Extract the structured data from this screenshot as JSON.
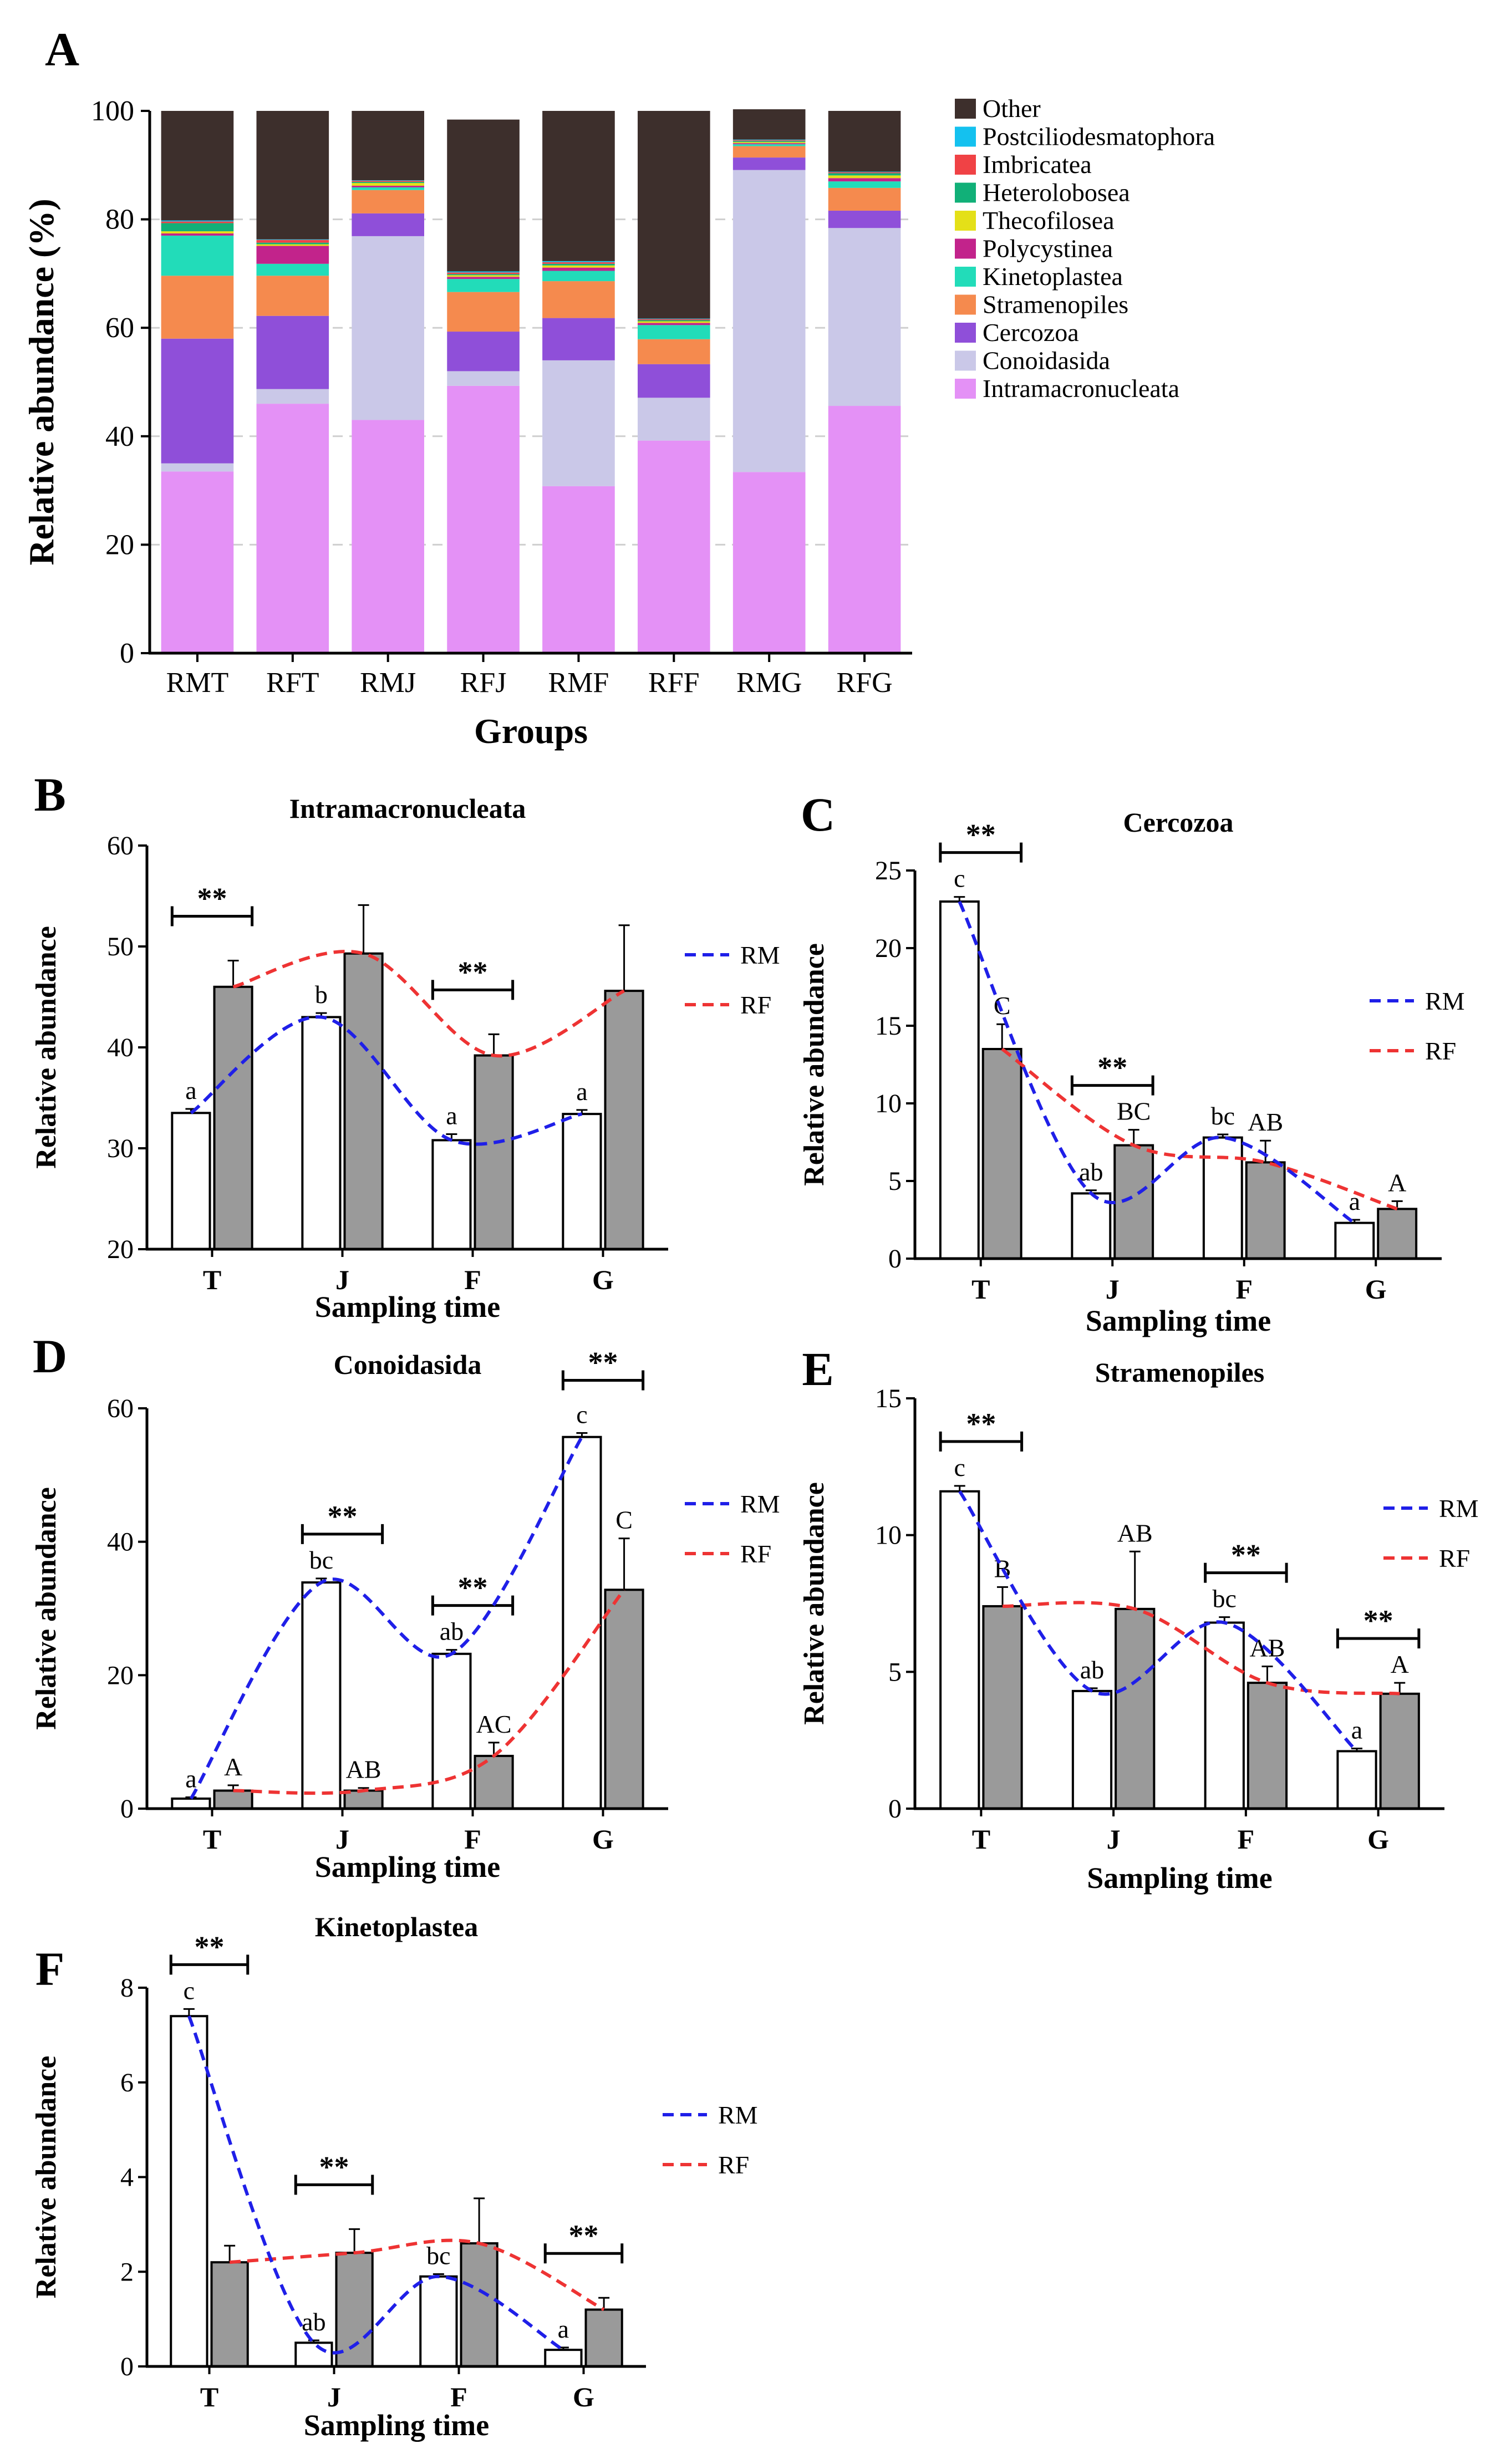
{
  "figure": {
    "panels": [
      "A",
      "B",
      "C",
      "D",
      "E",
      "F"
    ],
    "colors": {
      "Intramacronucleata": "#e491f6",
      "Conoidasida": "#cac8e8",
      "Cercozoa": "#8f4fd9",
      "Stramenopiles": "#f58a4e",
      "Kinetoplastea": "#22dcb9",
      "Polycystinea": "#c2238b",
      "Thecofilosea": "#e4e018",
      "Heterolobosea": "#11b078",
      "Imbricatea": "#f04245",
      "Postciliodesmatophora": "#14c1ef",
      "Other": "#3d2f2c",
      "rm_line": "#1f1fe8",
      "rf_line": "#ee3333",
      "rm_bar": "#ffffff",
      "rf_bar": "#9a9a9a"
    }
  },
  "chart_data": [
    {
      "panel": "A",
      "type": "bar",
      "stacked": true,
      "title": "",
      "xlabel": "Groups",
      "ylabel": "Relative abundance (%)",
      "ylim": [
        0,
        100
      ],
      "yticks": [
        "0",
        "20",
        "40",
        "60",
        "80",
        "100"
      ],
      "categories": [
        "RMT",
        "RFT",
        "RMJ",
        "RFJ",
        "RMF",
        "RFF",
        "RMG",
        "RFG"
      ],
      "legend_order": [
        "Other",
        "Postciliodesmatophora",
        "Imbricatea",
        "Heterolobosea",
        "Thecofilosea",
        "Polycystinea",
        "Kinetoplastea",
        "Stramenopiles",
        "Cercozoa",
        "Conoidasida",
        "Intramacronucleata"
      ],
      "series": [
        {
          "name": "Intramacronucleata",
          "values": [
            33.5,
            46.0,
            43.0,
            49.3,
            30.8,
            39.2,
            33.4,
            45.6
          ]
        },
        {
          "name": "Conoidasida",
          "values": [
            1.5,
            2.7,
            33.9,
            2.7,
            23.2,
            7.9,
            55.7,
            32.8
          ]
        },
        {
          "name": "Cercozoa",
          "values": [
            23.0,
            13.5,
            4.2,
            7.3,
            7.8,
            6.2,
            2.3,
            3.2
          ]
        },
        {
          "name": "Stramenopiles",
          "values": [
            11.6,
            7.4,
            4.3,
            7.3,
            6.8,
            4.6,
            2.1,
            4.2
          ]
        },
        {
          "name": "Kinetoplastea",
          "values": [
            7.4,
            2.2,
            0.5,
            2.4,
            1.9,
            2.6,
            0.35,
            1.2
          ]
        },
        {
          "name": "Polycystinea",
          "values": [
            0.4,
            3.3,
            0.3,
            0.4,
            0.6,
            0.4,
            0.2,
            0.6
          ]
        },
        {
          "name": "Thecofilosea",
          "values": [
            0.4,
            0.3,
            0.5,
            0.3,
            0.4,
            0.3,
            0.2,
            0.5
          ]
        },
        {
          "name": "Heterolobosea",
          "values": [
            1.5,
            0.3,
            0.2,
            0.2,
            0.3,
            0.2,
            0.2,
            0.4
          ]
        },
        {
          "name": "Imbricatea",
          "values": [
            0.3,
            0.5,
            0.2,
            0.3,
            0.3,
            0.2,
            0.15,
            0.2
          ]
        },
        {
          "name": "Postciliodesmatophora",
          "values": [
            0.2,
            0.1,
            0.1,
            0.2,
            0.2,
            0.1,
            0.1,
            0.1
          ]
        },
        {
          "name": "Other",
          "values": [
            20.2,
            23.7,
            12.8,
            28.0,
            27.7,
            38.3,
            5.6,
            11.2
          ]
        }
      ]
    },
    {
      "panel": "B",
      "type": "bar",
      "title": "Intramacronucleata",
      "xlabel": "Sampling time",
      "ylabel": "Relative abundance",
      "ylim": [
        20,
        60
      ],
      "yticks": [
        "20",
        "30",
        "40",
        "50",
        "60"
      ],
      "categories": [
        "T",
        "J",
        "F",
        "G"
      ],
      "legend": [
        "RM",
        "RF"
      ],
      "series": [
        {
          "name": "RM",
          "values": [
            33.5,
            43.0,
            30.8,
            33.4
          ],
          "errors": [
            0.4,
            0.4,
            0.6,
            0.4
          ],
          "letters": [
            "a",
            "b",
            "a",
            "a"
          ]
        },
        {
          "name": "RF",
          "values": [
            46.0,
            49.3,
            39.2,
            45.6
          ],
          "errors": [
            2.6,
            4.8,
            2.1,
            6.5
          ],
          "letters": [
            "",
            "",
            "",
            ""
          ]
        }
      ],
      "significance": [
        {
          "category": "T",
          "label": "**"
        },
        {
          "category": "F",
          "label": "**"
        }
      ]
    },
    {
      "panel": "C",
      "type": "bar",
      "title": "Cercozoa",
      "xlabel": "Sampling time",
      "ylabel": "Relative abundance",
      "ylim": [
        0,
        25
      ],
      "yticks": [
        "0",
        "5",
        "10",
        "15",
        "20",
        "25"
      ],
      "categories": [
        "T",
        "J",
        "F",
        "G"
      ],
      "legend": [
        "RM",
        "RF"
      ],
      "series": [
        {
          "name": "RM",
          "values": [
            23.0,
            4.2,
            7.8,
            2.3
          ],
          "errors": [
            0.3,
            0.2,
            0.2,
            0.2
          ],
          "letters": [
            "c",
            "ab",
            "bc",
            "a"
          ]
        },
        {
          "name": "RF",
          "values": [
            13.5,
            7.3,
            6.2,
            3.2
          ],
          "errors": [
            1.6,
            1.0,
            1.4,
            0.5
          ],
          "letters": [
            "C",
            "BC",
            "AB",
            "A"
          ]
        }
      ],
      "significance": [
        {
          "category": "T",
          "label": "**"
        },
        {
          "category": "J",
          "label": "**"
        }
      ]
    },
    {
      "panel": "D",
      "type": "bar",
      "title": "Conoidasida",
      "xlabel": "Sampling time",
      "ylabel": "Relative abundance",
      "ylim": [
        0,
        60
      ],
      "yticks": [
        "0",
        "20",
        "40",
        "60"
      ],
      "categories": [
        "T",
        "J",
        "F",
        "G"
      ],
      "legend": [
        "RM",
        "RF"
      ],
      "series": [
        {
          "name": "RM",
          "values": [
            1.5,
            33.9,
            23.2,
            55.7
          ],
          "errors": [
            0.2,
            0.6,
            0.6,
            0.6
          ],
          "letters": [
            "a",
            "bc",
            "ab",
            "c"
          ]
        },
        {
          "name": "RF",
          "values": [
            2.7,
            2.7,
            7.9,
            32.8
          ],
          "errors": [
            0.8,
            0.4,
            2.0,
            7.7
          ],
          "letters": [
            "A",
            "AB",
            "AC",
            "C"
          ]
        }
      ],
      "significance": [
        {
          "category": "J",
          "label": "**"
        },
        {
          "category": "F",
          "label": "**"
        },
        {
          "category": "G",
          "label": "**"
        }
      ]
    },
    {
      "panel": "E",
      "type": "bar",
      "title": "Stramenopiles",
      "xlabel": "Sampling time",
      "ylabel": "Relative abundance",
      "ylim": [
        0,
        15
      ],
      "yticks": [
        "0",
        "5",
        "10",
        "15"
      ],
      "categories": [
        "T",
        "J",
        "F",
        "G"
      ],
      "legend": [
        "RM",
        "RF"
      ],
      "series": [
        {
          "name": "RM",
          "values": [
            11.6,
            4.3,
            6.8,
            2.1
          ],
          "errors": [
            0.2,
            0.1,
            0.2,
            0.1
          ],
          "letters": [
            "c",
            "ab",
            "bc",
            "a"
          ]
        },
        {
          "name": "RF",
          "values": [
            7.4,
            7.3,
            4.6,
            4.2
          ],
          "errors": [
            0.7,
            2.1,
            0.6,
            0.4
          ],
          "letters": [
            "B",
            "AB",
            "AB",
            "A"
          ]
        }
      ],
      "significance": [
        {
          "category": "T",
          "label": "**"
        },
        {
          "category": "F",
          "label": "**"
        },
        {
          "category": "G",
          "label": "**"
        }
      ]
    },
    {
      "panel": "F",
      "type": "bar",
      "title": "Kinetoplastea",
      "xlabel": "Sampling time",
      "ylabel": "Relative abundance",
      "ylim": [
        0,
        8
      ],
      "yticks": [
        "0",
        "2",
        "4",
        "6",
        "8"
      ],
      "categories": [
        "T",
        "J",
        "F",
        "G"
      ],
      "legend": [
        "RM",
        "RF"
      ],
      "series": [
        {
          "name": "RM",
          "values": [
            7.4,
            0.5,
            1.9,
            0.35
          ],
          "errors": [
            0.15,
            0.05,
            0.05,
            0.05
          ],
          "letters": [
            "c",
            "ab",
            "bc",
            "a"
          ]
        },
        {
          "name": "RF",
          "values": [
            2.2,
            2.4,
            2.6,
            1.2
          ],
          "errors": [
            0.35,
            0.5,
            0.95,
            0.25
          ],
          "letters": [
            "",
            "",
            "",
            ""
          ]
        }
      ],
      "significance": [
        {
          "category": "T",
          "label": "**"
        },
        {
          "category": "J",
          "label": "**"
        },
        {
          "category": "G",
          "label": "**"
        }
      ]
    }
  ]
}
